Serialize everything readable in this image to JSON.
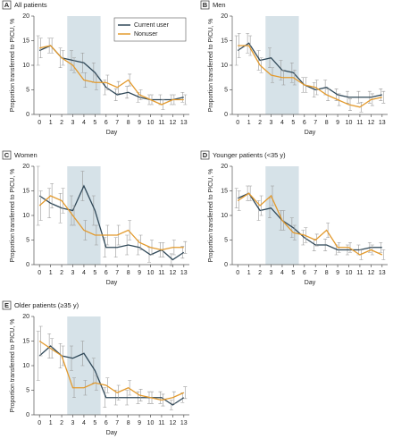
{
  "chart_data": [
    {
      "type": "line",
      "label": "A",
      "title": "All patients",
      "xlabel": "Day",
      "ylabel": "Proportion transferred to PICU, %",
      "x": [
        0,
        1,
        2,
        3,
        4,
        5,
        6,
        7,
        8,
        9,
        10,
        11,
        12,
        13
      ],
      "xlim": [
        -0.5,
        13.5
      ],
      "xticks": [
        0,
        1,
        2,
        3,
        4,
        5,
        6,
        7,
        8,
        9,
        10,
        11,
        12,
        13
      ],
      "ylim": [
        0,
        20
      ],
      "yticks": [
        0,
        5,
        10,
        15,
        20
      ],
      "highlight_x": [
        2.5,
        5.5
      ],
      "legend": "upper right",
      "series": [
        {
          "name": "Current user",
          "color": "#2f4858",
          "values": [
            13,
            14,
            11.5,
            11,
            10.5,
            8.5,
            5.5,
            4,
            4.5,
            3.5,
            3,
            3,
            3,
            3.5
          ],
          "errors": [
            3,
            1.5,
            2,
            2,
            2,
            2,
            1.5,
            1.2,
            1.2,
            1,
            1,
            1,
            1,
            1
          ]
        },
        {
          "name": "Nonuser",
          "color": "#e39a2d",
          "values": [
            13.5,
            14,
            11.5,
            10,
            7,
            6.5,
            6.5,
            5.5,
            7,
            4,
            3,
            2,
            3,
            3
          ],
          "errors": [
            2,
            1.5,
            1.5,
            1.5,
            1.5,
            1.5,
            1.5,
            1.2,
            1.2,
            1,
            1,
            1,
            1,
            1
          ]
        }
      ]
    },
    {
      "type": "line",
      "label": "B",
      "title": "Men",
      "xlabel": "Day",
      "ylabel": "Proportion transferred to PICU, %",
      "x": [
        0,
        1,
        2,
        3,
        4,
        5,
        6,
        7,
        8,
        9,
        10,
        11,
        12,
        13
      ],
      "xlim": [
        -0.5,
        13.5
      ],
      "xticks": [
        0,
        1,
        2,
        3,
        4,
        5,
        6,
        7,
        8,
        9,
        10,
        11,
        12,
        13
      ],
      "ylim": [
        0,
        20
      ],
      "yticks": [
        0,
        5,
        10,
        15,
        20
      ],
      "highlight_x": [
        2.5,
        5.5
      ],
      "series": [
        {
          "color": "#2f4858",
          "values": [
            13,
            14.5,
            11,
            11.5,
            9,
            8.5,
            6,
            5,
            5.5,
            4,
            3.5,
            3.5,
            3.5,
            4
          ],
          "errors": [
            3,
            2,
            2,
            2,
            2,
            2,
            1.5,
            1.5,
            1.5,
            1.2,
            1.2,
            1.2,
            1.2,
            1.2
          ]
        },
        {
          "color": "#e39a2d",
          "values": [
            14,
            14,
            10,
            8,
            7.5,
            7.5,
            6,
            5.5,
            4,
            3,
            2,
            1.5,
            3,
            3.5
          ],
          "errors": [
            2.5,
            2,
            1.5,
            1.5,
            1.5,
            1.5,
            1.5,
            1.5,
            1.2,
            1.2,
            1.2,
            1,
            1.2,
            1.2
          ]
        }
      ]
    },
    {
      "type": "line",
      "label": "C",
      "title": "Women",
      "xlabel": "Day",
      "ylabel": "Proportion transferred to PICU, %",
      "x": [
        0,
        1,
        2,
        3,
        4,
        5,
        6,
        7,
        8,
        9,
        10,
        11,
        12,
        13
      ],
      "xlim": [
        -0.5,
        13.5
      ],
      "xticks": [
        0,
        1,
        2,
        3,
        4,
        5,
        6,
        7,
        8,
        9,
        10,
        11,
        12,
        13
      ],
      "ylim": [
        0,
        20
      ],
      "yticks": [
        0,
        5,
        10,
        15,
        20
      ],
      "highlight_x": [
        2.5,
        5.5
      ],
      "series": [
        {
          "color": "#2f4858",
          "values": [
            14,
            12.5,
            11.5,
            11,
            16,
            11,
            3.5,
            3.5,
            4,
            3.5,
            2,
            3,
            1,
            2.5
          ],
          "errors": [
            6,
            3,
            3,
            3,
            3,
            3,
            2,
            2,
            2,
            1.5,
            1.5,
            1.5,
            1.2,
            1.2
          ]
        },
        {
          "color": "#e39a2d",
          "values": [
            12,
            14,
            13,
            10,
            7,
            6,
            6,
            6,
            7,
            4.5,
            3.5,
            3,
            3.5,
            3.5
          ],
          "errors": [
            3,
            2.5,
            2.5,
            2,
            2,
            2,
            2,
            2,
            2,
            1.5,
            1.5,
            1.5,
            1.5,
            1.2
          ]
        }
      ]
    },
    {
      "type": "line",
      "label": "D",
      "title": "Younger patients (<35 y)",
      "xlabel": "Day",
      "ylabel": "Proportion transferred to PICU, %",
      "x": [
        0,
        1,
        2,
        3,
        4,
        5,
        6,
        7,
        8,
        9,
        10,
        11,
        12,
        13
      ],
      "xlim": [
        -0.5,
        13.5
      ],
      "xticks": [
        0,
        1,
        2,
        3,
        4,
        5,
        6,
        7,
        8,
        9,
        10,
        11,
        12,
        13
      ],
      "ylim": [
        0,
        20
      ],
      "yticks": [
        0,
        5,
        10,
        15,
        20
      ],
      "highlight_x": [
        2.5,
        5.5
      ],
      "series": [
        {
          "color": "#2f4858",
          "values": [
            13.5,
            14.5,
            11,
            11.5,
            9,
            7.5,
            5.5,
            4,
            4,
            3,
            3,
            3,
            3.5,
            3.5
          ],
          "errors": [
            2,
            1.5,
            2,
            2,
            2,
            2,
            1.5,
            1.2,
            1.2,
            1,
            1,
            1,
            1,
            1
          ]
        },
        {
          "color": "#e39a2d",
          "values": [
            13,
            14.5,
            12,
            14,
            9,
            6.5,
            6,
            5,
            7,
            3.5,
            3.5,
            2,
            3,
            2
          ],
          "errors": [
            2,
            1.5,
            2,
            2,
            2,
            1.5,
            1.5,
            1.2,
            1.5,
            1,
            1,
            1,
            1,
            1
          ]
        }
      ]
    },
    {
      "type": "line",
      "label": "E",
      "title": "Older patients (≥35 y)",
      "xlabel": "Day",
      "ylabel": "Proportion transferred to PICU, %",
      "x": [
        0,
        1,
        2,
        3,
        4,
        5,
        6,
        7,
        8,
        9,
        10,
        11,
        12,
        13
      ],
      "xlim": [
        -0.5,
        13.5
      ],
      "xticks": [
        0,
        1,
        2,
        3,
        4,
        5,
        6,
        7,
        8,
        9,
        10,
        11,
        12,
        13
      ],
      "ylim": [
        0,
        20
      ],
      "yticks": [
        0,
        5,
        10,
        15,
        20
      ],
      "highlight_x": [
        2.5,
        5.5
      ],
      "series": [
        {
          "color": "#2f4858",
          "values": [
            12,
            14,
            12,
            11.5,
            12.5,
            9,
            3.5,
            3.5,
            3.5,
            3.5,
            3.5,
            3.5,
            2,
            3.5
          ],
          "errors": [
            5,
            2.5,
            2.5,
            2.5,
            2.5,
            2.5,
            2,
            1.5,
            1.5,
            1.2,
            1.2,
            1.2,
            1,
            1
          ]
        },
        {
          "color": "#e39a2d",
          "values": [
            15,
            13.5,
            12,
            5.5,
            5.5,
            6.5,
            6,
            4.5,
            5.5,
            4,
            3.5,
            3,
            3.5,
            4.5
          ],
          "errors": [
            3,
            2,
            2,
            2,
            1.5,
            1.5,
            1.5,
            1.5,
            1.5,
            1.2,
            1.2,
            1.2,
            1.2,
            1.2
          ]
        }
      ]
    }
  ]
}
